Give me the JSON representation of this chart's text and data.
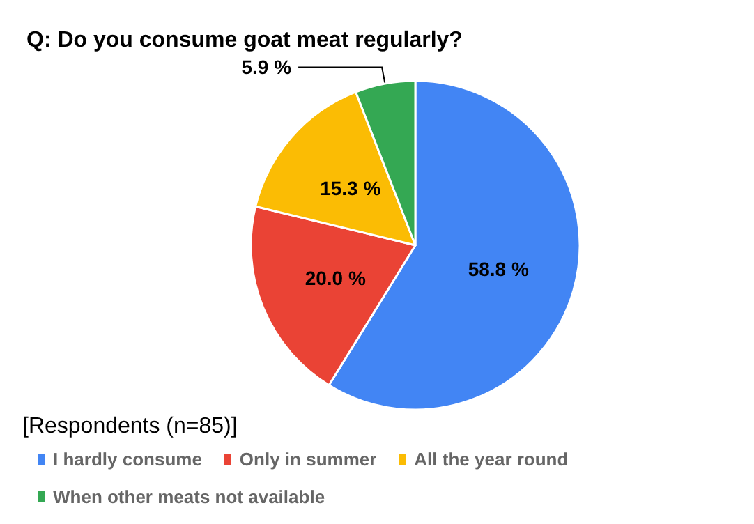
{
  "chart_data": {
    "type": "pie",
    "title": "Q: Do you consume goat meat regularly?",
    "annotations": [
      "[Respondents (n=85)]"
    ],
    "categories": [
      "I hardly consume",
      "Only in summer",
      "All the year round",
      "When other meats not available"
    ],
    "values": [
      58.8,
      20.0,
      15.3,
      5.9
    ],
    "value_labels": [
      "58.8 %",
      "20.0 %",
      "15.3 %",
      "5.9 %"
    ],
    "colors": [
      "#4285f4",
      "#ea4335",
      "#fbbc04",
      "#34a853"
    ],
    "legend": "bottom"
  }
}
